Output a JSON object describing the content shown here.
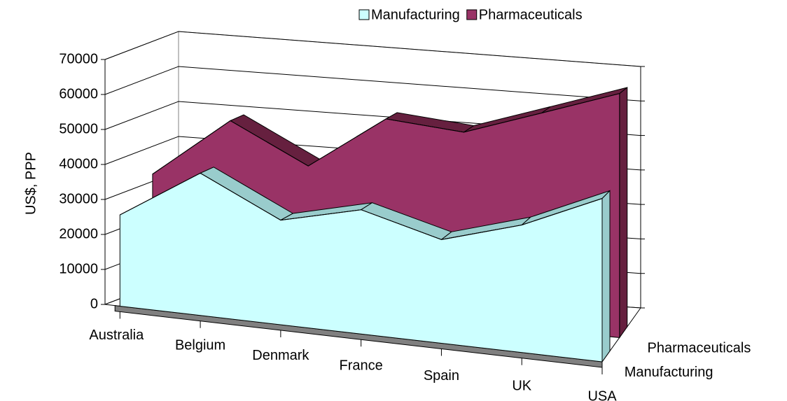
{
  "chart_data": {
    "type": "area3d",
    "y_label": "US$, PPP",
    "categories": [
      "Australia",
      "Belgium",
      "Denmark",
      "France",
      "Spain",
      "UK",
      "USA"
    ],
    "series": [
      {
        "name": "Manufacturing",
        "color": "#ccffff",
        "values": [
          26000,
          40000,
          29000,
          34000,
          28000,
          34000,
          43000
        ]
      },
      {
        "name": "Pharmaceuticals",
        "color": "#993366",
        "values": [
          34000,
          51000,
          40000,
          55000,
          53000,
          60000,
          67000
        ]
      }
    ],
    "ylim": [
      0,
      70000
    ],
    "yticks": [
      0,
      10000,
      20000,
      30000,
      40000,
      50000,
      60000,
      70000
    ],
    "grid": true,
    "legend": "top"
  }
}
